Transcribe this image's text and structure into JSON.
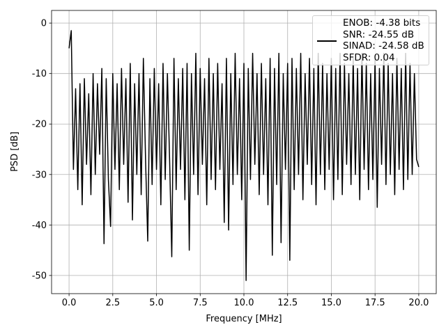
{
  "chart_data": {
    "type": "line",
    "xlabel": "Frequency [MHz]",
    "ylabel": "PSD [dB]",
    "xlim": [
      -1.0,
      21.0
    ],
    "ylim": [
      -53.6,
      2.5
    ],
    "xticks": [
      {
        "value": 0,
        "label": "0.0"
      },
      2.5,
      {
        "value": 5,
        "label": "5.0"
      },
      7.5,
      {
        "value": 10,
        "label": "10.0"
      },
      12.5,
      {
        "value": 15,
        "label": "15.0"
      },
      17.5,
      {
        "value": 20,
        "label": "20.0"
      }
    ],
    "yticks": [
      0,
      -10,
      -20,
      -30,
      -40,
      -50
    ],
    "grid": true,
    "legend": "upper right",
    "x": [
      0,
      0.125,
      0.25,
      0.375,
      0.5,
      0.625,
      0.75,
      0.875,
      1,
      1.125,
      1.25,
      1.375,
      1.5,
      1.625,
      1.75,
      1.875,
      2,
      2.125,
      2.25,
      2.375,
      2.5,
      2.625,
      2.75,
      2.875,
      3,
      3.125,
      3.25,
      3.375,
      3.5,
      3.625,
      3.75,
      3.875,
      4,
      4.125,
      4.25,
      4.375,
      4.5,
      4.625,
      4.75,
      4.875,
      5,
      5.125,
      5.25,
      5.375,
      5.5,
      5.625,
      5.75,
      5.875,
      6,
      6.125,
      6.25,
      6.375,
      6.5,
      6.625,
      6.75,
      6.875,
      7,
      7.125,
      7.25,
      7.375,
      7.5,
      7.625,
      7.75,
      7.875,
      8,
      8.125,
      8.25,
      8.375,
      8.5,
      8.625,
      8.75,
      8.875,
      9,
      9.125,
      9.25,
      9.375,
      9.5,
      9.625,
      9.75,
      9.875,
      10,
      10.125,
      10.25,
      10.375,
      10.5,
      10.625,
      10.75,
      10.875,
      11,
      11.125,
      11.25,
      11.375,
      11.5,
      11.625,
      11.75,
      11.875,
      12,
      12.125,
      12.25,
      12.375,
      12.5,
      12.625,
      12.75,
      12.875,
      13,
      13.125,
      13.25,
      13.375,
      13.5,
      13.625,
      13.75,
      13.875,
      14,
      14.125,
      14.25,
      14.375,
      14.5,
      14.625,
      14.75,
      14.875,
      15,
      15.125,
      15.25,
      15.375,
      15.5,
      15.625,
      15.75,
      15.875,
      16,
      16.125,
      16.25,
      16.375,
      16.5,
      16.625,
      16.75,
      16.875,
      17,
      17.125,
      17.25,
      17.375,
      17.5,
      17.625,
      17.75,
      17.875,
      18,
      18.125,
      18.25,
      18.375,
      18.5,
      18.625,
      18.75,
      18.875,
      19,
      19.125,
      19.25,
      19.375,
      19.5,
      19.625,
      19.75,
      19.875,
      20
    ],
    "series": [
      {
        "name": "ENOB: -4.38 bits\nSNR: -24.55 dB\nSINAD: -24.58 dB\nSFDR: 0.04",
        "color": "#000000",
        "values": [
          -5,
          -1.5,
          -29,
          -13,
          -33,
          -12,
          -36,
          -11,
          -28,
          -14,
          -34,
          -10,
          -30,
          -12,
          -26,
          -9,
          -43.7,
          -11,
          -31,
          -40.3,
          -10,
          -29,
          -12,
          -33,
          -9,
          -28,
          -11,
          -35.5,
          -8,
          -39,
          -12,
          -30,
          -10,
          -34,
          -7,
          -27,
          -43.2,
          -11,
          -32,
          -9,
          -29,
          -12,
          -36,
          -8,
          -31,
          -10,
          -27,
          -46.3,
          -7,
          -33,
          -11,
          -29,
          -9,
          -35,
          -8,
          -45,
          -10,
          -30,
          -6,
          -34,
          -9,
          -28,
          -11,
          -36,
          -7,
          -31,
          -10,
          -33,
          -8,
          -29,
          -12,
          -39.5,
          -7,
          -41,
          -10,
          -32,
          -6,
          -30,
          -11,
          -35,
          -8,
          -51,
          -9,
          -31,
          -6,
          -28,
          -10,
          -34,
          -8,
          -30,
          -11,
          -36,
          -7,
          -46,
          -9,
          -32,
          -6,
          -43.5,
          -10,
          -29,
          -8,
          -47,
          -7,
          -33,
          -9,
          -30,
          -6,
          -35,
          -10,
          -28,
          -7,
          -32,
          -9,
          -36,
          -6,
          -30,
          -8,
          -33,
          -10,
          -29,
          -7,
          -35,
          -9,
          -31,
          -6,
          -34,
          -8,
          -28,
          -10,
          -32,
          -7,
          -30,
          -9,
          -35,
          -6,
          -29,
          -8,
          -33,
          -10,
          -31,
          -7,
          -36.5,
          -9,
          -28,
          -6,
          -32,
          -8,
          -30,
          -10,
          -34,
          -7,
          -29,
          -9,
          -33,
          -6,
          -31,
          -8,
          -30,
          -10,
          -27,
          -28.5
        ]
      }
    ]
  }
}
